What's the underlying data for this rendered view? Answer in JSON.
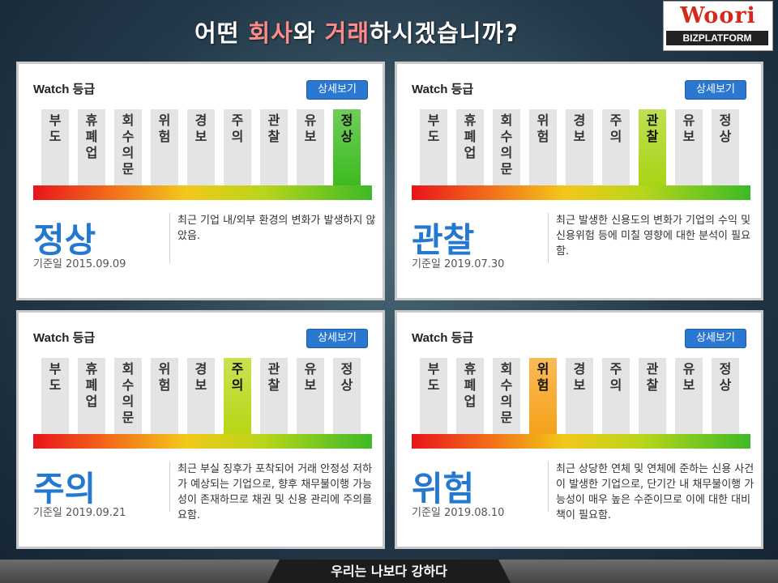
{
  "title": {
    "part1": "어떤 ",
    "part2": "회사",
    "part3": "와 ",
    "part4": "거래",
    "part5": "하시겠습니까?"
  },
  "logo": {
    "brand": "Woori",
    "sub": "BIZPLATFORM"
  },
  "footer": {
    "motto": "우리는 나보다 강하다"
  },
  "colors": {
    "active_green": "#3dba1f",
    "active_lime": "#a8d414",
    "active_orange": "#f6a21a",
    "status_blue": "#2478d0",
    "button_blue": "#2b78d0"
  },
  "cards": [
    {
      "header": "Watch 등급",
      "button": "상세보기",
      "levels": [
        "부\n도",
        "휴\n폐\n업",
        "회\n수\n의\n문",
        "위\n험",
        "경\n보",
        "주\n의",
        "관\n찰",
        "유\n보",
        "정\n상"
      ],
      "active_index": 8,
      "active_color": "#3dba1f",
      "status": "정상",
      "date": "기준일 2015.09.09",
      "description": "최근 기업 내/외부 환경의 변화가 발생하지 않았음."
    },
    {
      "header": "Watch 등급",
      "button": "상세보기",
      "levels": [
        "부\n도",
        "휴\n폐\n업",
        "회\n수\n의\n문",
        "위\n험",
        "경\n보",
        "주\n의",
        "관\n찰",
        "유\n보",
        "정\n상"
      ],
      "active_index": 6,
      "active_color": "#a8d414",
      "status": "관찰",
      "date": "기준일 2019.07.30",
      "description": "최근 발생한 신용도의 변화가 기업의 수익 및 신용위험 등에 미칠 영향에 대한 분석이 필요함."
    },
    {
      "header": "Watch 등급",
      "button": "상세보기",
      "levels": [
        "부\n도",
        "휴\n폐\n업",
        "회\n수\n의\n문",
        "위\n험",
        "경\n보",
        "주\n의",
        "관\n찰",
        "유\n보",
        "정\n상"
      ],
      "active_index": 5,
      "active_color": "#b8d614",
      "status": "주의",
      "date": "기준일 2019.09.21",
      "description": "최근 부실 징후가 포착되어 거래 안정성 저하가 예상되는 기업으로, 향후 채무불이행 가능성이 존재하므로 채권 및 신용 관리에 주의를 요함."
    },
    {
      "header": "Watch 등급",
      "button": "상세보기",
      "levels": [
        "부\n도",
        "휴\n폐\n업",
        "회\n수\n의\n문",
        "위\n험",
        "경\n보",
        "주\n의",
        "관\n찰",
        "유\n보",
        "정\n상"
      ],
      "active_index": 3,
      "active_color": "#f6a21a",
      "status": "위험",
      "date": "기준일 2019.08.10",
      "description": "최근 상당한 연체 및 연체에 준하는 신용 사건이 발생한 기업으로, 단기간 내 채무불이행 가능성이 매우 높은 수준이므로 이에 대한 대비책이 필요함."
    }
  ]
}
